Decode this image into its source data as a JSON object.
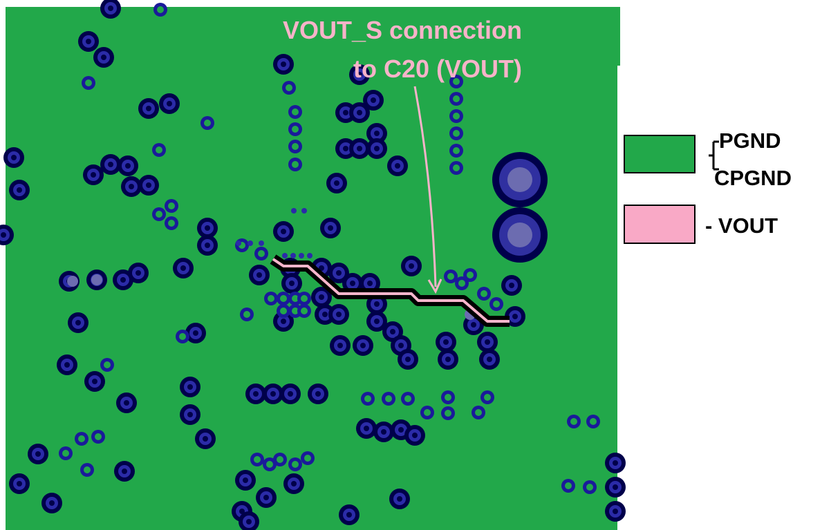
{
  "annotation": {
    "lines": [
      "VOUT_S connection",
      "to C20 (VOUT)"
    ]
  },
  "legend": {
    "items": [
      {
        "labels": [
          "PGND",
          "CPGND"
        ],
        "color": "#22a84a"
      },
      {
        "labels": [
          "- VOUT"
        ],
        "color": "#f9a9c6"
      }
    ]
  }
}
